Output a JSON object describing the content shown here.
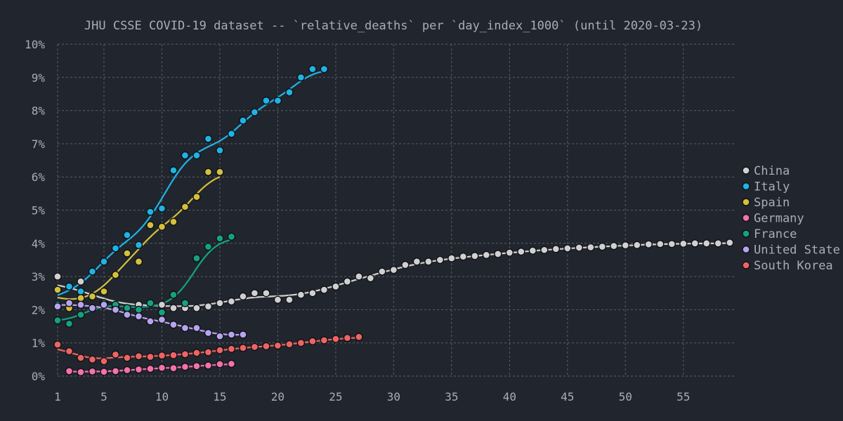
{
  "chart_data": {
    "type": "scatter",
    "title": "JHU CSSE COVID-19 dataset -- `relative_deaths` per `day_index_1000` (until 2020-03-23)",
    "xlabel": "",
    "ylabel": "",
    "xlim": [
      1,
      59.5
    ],
    "ylim": [
      0,
      10
    ],
    "x_ticks": [
      1,
      5,
      10,
      15,
      20,
      25,
      30,
      35,
      40,
      45,
      50,
      55
    ],
    "y_ticks": [
      0,
      1,
      2,
      3,
      4,
      5,
      6,
      7,
      8,
      9,
      10
    ],
    "y_tick_suffix": "%",
    "grid": true,
    "legend_position": "right",
    "colors": {
      "background": "#21252d",
      "text": "#a9adb5",
      "grid": "#5a5e66",
      "marker_edge": "#101216"
    },
    "series": [
      {
        "name": "China",
        "color": "#d0d0d0",
        "x": [
          1,
          2,
          3,
          4,
          5,
          6,
          7,
          8,
          9,
          10,
          11,
          12,
          13,
          14,
          15,
          16,
          17,
          18,
          19,
          20,
          21,
          22,
          23,
          24,
          25,
          26,
          27,
          28,
          29,
          30,
          31,
          32,
          33,
          34,
          35,
          36,
          37,
          38,
          39,
          40,
          41,
          42,
          43,
          44,
          45,
          46,
          47,
          48,
          49,
          50,
          51,
          52,
          53,
          54,
          55,
          56,
          57,
          58,
          59
        ],
        "y": [
          3.0,
          2.7,
          2.85,
          2.4,
          2.2,
          2.1,
          2.05,
          2.15,
          2.2,
          2.15,
          2.05,
          2.05,
          2.05,
          2.1,
          2.2,
          2.25,
          2.4,
          2.5,
          2.5,
          2.3,
          2.3,
          2.45,
          2.5,
          2.6,
          2.7,
          2.85,
          3.0,
          2.95,
          3.15,
          3.2,
          3.35,
          3.45,
          3.45,
          3.5,
          3.55,
          3.6,
          3.62,
          3.65,
          3.68,
          3.72,
          3.75,
          3.78,
          3.8,
          3.83,
          3.85,
          3.87,
          3.88,
          3.9,
          3.92,
          3.94,
          3.95,
          3.97,
          3.98,
          3.98,
          3.99,
          4.0,
          4.0,
          4.0,
          4.02
        ]
      },
      {
        "name": "Italy",
        "color": "#1fb3e6",
        "x": [
          1,
          2,
          3,
          4,
          5,
          6,
          7,
          8,
          9,
          10,
          11,
          12,
          13,
          14,
          15,
          16,
          17,
          18,
          19,
          20,
          21,
          22,
          23,
          24
        ],
        "y": [
          2.15,
          2.7,
          2.55,
          3.15,
          3.45,
          3.85,
          4.25,
          3.95,
          4.95,
          5.05,
          6.2,
          6.65,
          6.65,
          7.15,
          6.8,
          7.3,
          7.7,
          7.95,
          8.3,
          8.3,
          8.55,
          9.0,
          9.25,
          9.25
        ]
      },
      {
        "name": "Spain",
        "color": "#d4c13b",
        "x": [
          1,
          2,
          3,
          4,
          5,
          6,
          7,
          8,
          9,
          10,
          11,
          12,
          13,
          14,
          15
        ],
        "y": [
          2.6,
          2.05,
          2.35,
          2.4,
          2.55,
          3.05,
          3.7,
          3.45,
          4.55,
          4.5,
          4.65,
          5.1,
          5.4,
          6.15,
          6.15
        ]
      },
      {
        "name": "Germany",
        "color": "#f272a9",
        "x": [
          2,
          3,
          4,
          5,
          6,
          7,
          8,
          9,
          10,
          11,
          12,
          13,
          14,
          15,
          16
        ],
        "y": [
          0.15,
          0.12,
          0.14,
          0.13,
          0.15,
          0.18,
          0.2,
          0.22,
          0.25,
          0.24,
          0.28,
          0.3,
          0.32,
          0.36,
          0.37
        ]
      },
      {
        "name": "France",
        "color": "#14a27f",
        "x": [
          1,
          2,
          3,
          4,
          5,
          6,
          7,
          8,
          9,
          10,
          11,
          12,
          13,
          14,
          15,
          16
        ],
        "y": [
          1.68,
          1.58,
          1.85,
          2.05,
          2.2,
          2.15,
          2.05,
          2.0,
          2.2,
          1.92,
          2.45,
          2.2,
          3.55,
          3.9,
          4.15,
          4.2
        ]
      },
      {
        "name": "United State",
        "color": "#b7a4ef",
        "x": [
          1,
          2,
          3,
          4,
          5,
          6,
          7,
          8,
          9,
          10,
          11,
          12,
          13,
          14,
          15,
          16,
          17
        ],
        "y": [
          2.1,
          2.2,
          2.15,
          2.05,
          2.15,
          2.0,
          1.85,
          1.8,
          1.65,
          1.7,
          1.55,
          1.45,
          1.45,
          1.3,
          1.2,
          1.25,
          1.25
        ]
      },
      {
        "name": "South Korea",
        "color": "#ed6463",
        "x": [
          1,
          2,
          3,
          4,
          5,
          6,
          7,
          8,
          9,
          10,
          11,
          12,
          13,
          14,
          15,
          16,
          17,
          18,
          19,
          20,
          21,
          22,
          23,
          24,
          25,
          26,
          27
        ],
        "y": [
          0.95,
          0.75,
          0.55,
          0.5,
          0.45,
          0.65,
          0.55,
          0.6,
          0.58,
          0.62,
          0.63,
          0.66,
          0.7,
          0.72,
          0.78,
          0.82,
          0.85,
          0.88,
          0.9,
          0.92,
          0.96,
          1.0,
          1.05,
          1.08,
          1.12,
          1.15,
          1.18
        ]
      }
    ]
  }
}
